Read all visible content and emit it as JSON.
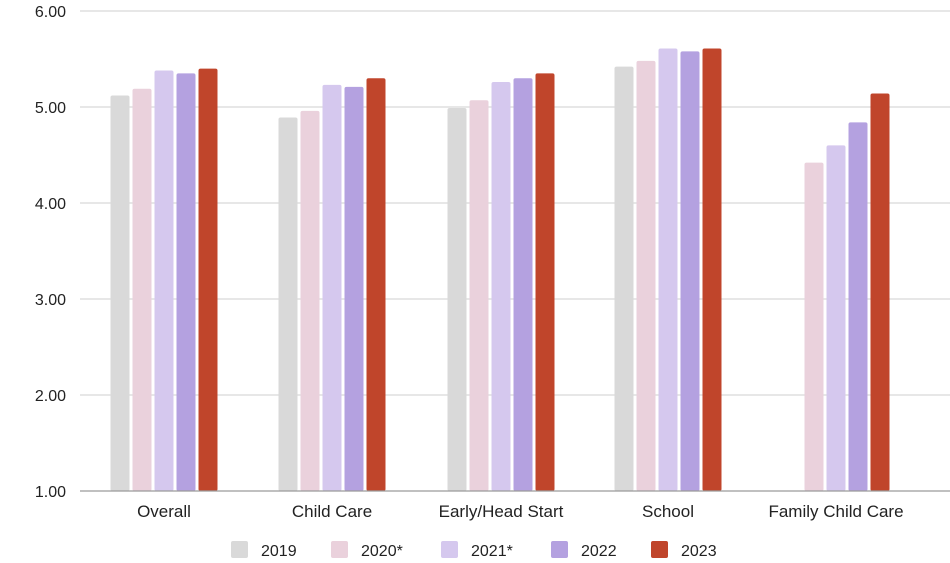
{
  "chart_data": {
    "type": "bar",
    "title": "",
    "xlabel": "",
    "ylabel": "",
    "categories": [
      "Overall",
      "Child Care",
      "Early/Head Start",
      "School",
      "Family Child Care"
    ],
    "series": [
      {
        "name": "2019",
        "color": "#d9d9d9",
        "values": [
          5.12,
          4.89,
          4.99,
          5.42,
          null
        ]
      },
      {
        "name": "2020*",
        "color": "#ead1dc",
        "values": [
          5.19,
          4.96,
          5.07,
          5.48,
          4.42
        ]
      },
      {
        "name": "2021*",
        "color": "#d5c8ee",
        "values": [
          5.38,
          5.23,
          5.26,
          5.61,
          4.6
        ]
      },
      {
        "name": "2022",
        "color": "#b4a1e0",
        "values": [
          5.35,
          5.21,
          5.3,
          5.58,
          4.84
        ]
      },
      {
        "name": "2023",
        "color": "#c0452b",
        "values": [
          5.4,
          5.3,
          5.35,
          5.61,
          5.14
        ]
      }
    ],
    "ylim": [
      1.0,
      6.0
    ],
    "yticks": [
      "1.00",
      "2.00",
      "3.00",
      "4.00",
      "5.00",
      "6.00"
    ],
    "grid": true,
    "legend_position": "bottom"
  }
}
